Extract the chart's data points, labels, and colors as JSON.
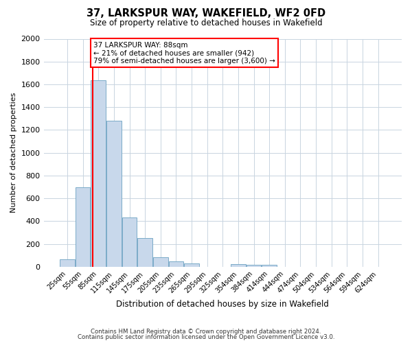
{
  "title": "37, LARKSPUR WAY, WAKEFIELD, WF2 0FD",
  "subtitle": "Size of property relative to detached houses in Wakefield",
  "xlabel": "Distribution of detached houses by size in Wakefield",
  "ylabel": "Number of detached properties",
  "bar_labels": [
    "25sqm",
    "55sqm",
    "85sqm",
    "115sqm",
    "145sqm",
    "175sqm",
    "205sqm",
    "235sqm",
    "265sqm",
    "295sqm",
    "325sqm",
    "354sqm",
    "384sqm",
    "414sqm",
    "444sqm",
    "474sqm",
    "504sqm",
    "534sqm",
    "564sqm",
    "594sqm",
    "624sqm"
  ],
  "bar_values": [
    65,
    695,
    1635,
    1280,
    435,
    255,
    85,
    50,
    30,
    0,
    0,
    25,
    20,
    15,
    0,
    0,
    0,
    0,
    0,
    0,
    0
  ],
  "bar_color": "#c8d8eb",
  "bar_edge_color": "#7aaac8",
  "property_line_color": "red",
  "annotation_line1": "37 LARKSPUR WAY: 88sqm",
  "annotation_line2": "← 21% of detached houses are smaller (942)",
  "annotation_line3": "79% of semi-detached houses are larger (3,600) →",
  "annotation_box_color": "white",
  "annotation_box_edge": "red",
  "ylim": [
    0,
    2000
  ],
  "yticks": [
    0,
    200,
    400,
    600,
    800,
    1000,
    1200,
    1400,
    1600,
    1800,
    2000
  ],
  "footer_line1": "Contains HM Land Registry data © Crown copyright and database right 2024.",
  "footer_line2": "Contains public sector information licensed under the Open Government Licence v3.0.",
  "bg_color": "#ffffff",
  "plot_bg_color": "#ffffff",
  "grid_color": "#c8d4e0"
}
